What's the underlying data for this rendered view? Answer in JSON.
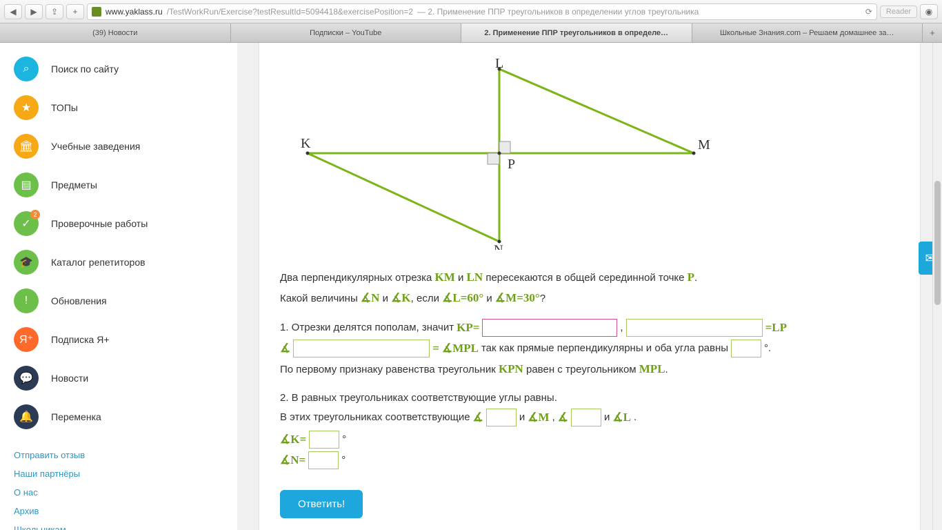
{
  "browser": {
    "url_host": "www.yaklass.ru",
    "url_path": "/TestWorkRun/Exercise?testResultId=5094418&exercisePosition=2",
    "url_title": " — 2. Применение ППР треугольников в определении углов треугольника",
    "reader": "Reader",
    "tabs": [
      "(39) Новости",
      "Подписки – YouTube",
      "2. Применение ППР треугольников в определе…",
      "Школьные Знания.com – Решаем домашнее за…"
    ]
  },
  "sidebar": {
    "items": [
      {
        "label": "Поиск по сайту",
        "color": "#1bb5e0",
        "icon": "search"
      },
      {
        "label": "ТОПы",
        "color": "#f6a815",
        "icon": "star"
      },
      {
        "label": "Учебные заведения",
        "color": "#f6a815",
        "icon": "bank"
      },
      {
        "label": "Предметы",
        "color": "#6cc04a",
        "icon": "book"
      },
      {
        "label": "Проверочные работы",
        "color": "#6cc04a",
        "icon": "check",
        "badge": "2"
      },
      {
        "label": "Каталог репетиторов",
        "color": "#6cc04a",
        "icon": "grad"
      },
      {
        "label": "Обновления",
        "color": "#6cc04a",
        "icon": "excl"
      },
      {
        "label": "Подписка Я+",
        "color": "#ff6a2b",
        "icon": "yplus"
      },
      {
        "label": "Новости",
        "color": "#2b3a55",
        "icon": "chat"
      },
      {
        "label": "Переменка",
        "color": "#2b3a55",
        "icon": "bell"
      }
    ],
    "links": [
      "Отправить отзыв",
      "Наши партнёры",
      "О нас",
      "Архив",
      "Школьникам"
    ]
  },
  "diagram": {
    "stroke": "#7cb518",
    "fill_sq": "#eaeaea",
    "labels": {
      "K": "K",
      "L": "L",
      "M": "M",
      "N": "N",
      "P": "P"
    }
  },
  "problem": {
    "l1a": "Два перпендикулярных отрезка ",
    "km": "KM",
    "l1b": " и ",
    "ln": "LN",
    "l1c": " пересекаются в общей серединной точке ",
    "p": "P",
    "l1d": ".",
    "l2a": "Какой величины ",
    "an": "N",
    "l2b": " и ",
    "ak": "K",
    "l2c": ", если ",
    "al": "L=60°",
    "l2d": " и ",
    "am": "M=30°",
    "l2e": "?",
    "q1a": "1. Отрезки делятся пополам, значит ",
    "kp": "KP=",
    "comma": ", ",
    "eq_lp": "=LP",
    "q1b_eq": "=",
    "mpl": "MPL",
    "q1b": " так как прямые перпендикулярны и оба угла равны ",
    "deg": "°.",
    "q1c": "По первому признаку равенства треугольник ",
    "kpn": "KPN",
    "q1d": " равен с треугольником ",
    "mpl2": "MPL",
    "dot": ".",
    "q2a": "2. В равных треугольниках соответствующие углы равны.",
    "q2b": "В этих треугольниках соответствующие ",
    "and1": " и ",
    "am2": "M",
    "c2": ", ",
    "and2": " и ",
    "al2": "L",
    "dot2": ".",
    "akeq": "K=",
    "aneq": "N=",
    "degonly": "°",
    "submit": "Ответить!"
  }
}
